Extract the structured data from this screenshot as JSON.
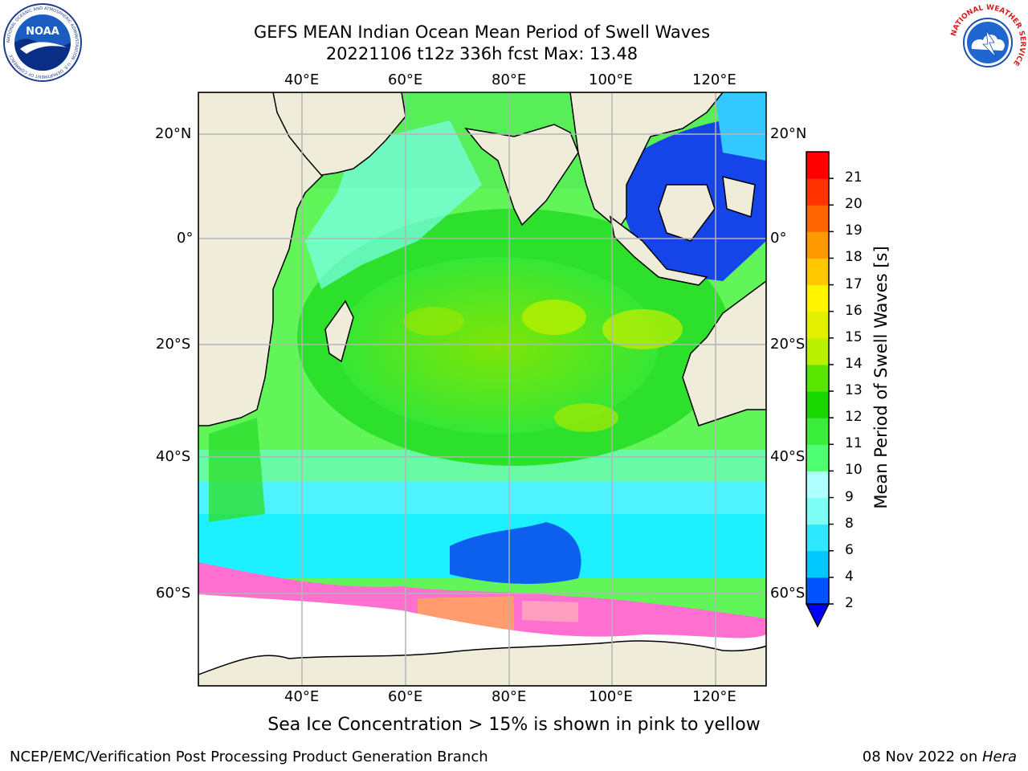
{
  "header": {
    "title_line1": "GEFS MEAN Indian Ocean Mean Period of Swell Waves",
    "title_line2": "20221106 t12z 336h fcst   Max: 13.48"
  },
  "logos": {
    "left": "NOAA",
    "left_ring": "NATIONAL OCEANIC AND ATMOSPHERIC ADMINISTRATION · U.S. DEPARTMENT OF COMMERCE",
    "right_ring": "NATIONAL WEATHER SERVICE"
  },
  "map": {
    "lon_labels": [
      "40°E",
      "60°E",
      "80°E",
      "100°E",
      "120°E"
    ],
    "lat_labels": [
      "20°N",
      "0°",
      "20°S",
      "40°S",
      "60°S"
    ],
    "colors": {
      "land": "#efedda",
      "ice_bg": "#ffffff",
      "grid": "#b4b4b4"
    }
  },
  "colorbar": {
    "title": "Mean Period of Swell Waves [s]",
    "ticks": [
      "2",
      "4",
      "6",
      "8",
      "9",
      "10",
      "11",
      "12",
      "13",
      "14",
      "15",
      "16",
      "17",
      "18",
      "19",
      "20",
      "21"
    ],
    "colors": [
      "#0052ff",
      "#00c8ff",
      "#2ee8ff",
      "#7dfff5",
      "#b0ffff",
      "#4eff74",
      "#3aed3a",
      "#18d800",
      "#5ae600",
      "#b8f000",
      "#e2f000",
      "#fff300",
      "#ffc800",
      "#ff9900",
      "#ff6400",
      "#ff3200",
      "#ff0000"
    ],
    "extend_color": "#0000ff"
  },
  "caption": "Sea Ice Concentration > 15% is shown in pink to yellow",
  "footer": {
    "left": "NCEP/EMC/Verification Post Processing Product Generation Branch",
    "date": "08 Nov 2022 on ",
    "machine": "Hera"
  }
}
